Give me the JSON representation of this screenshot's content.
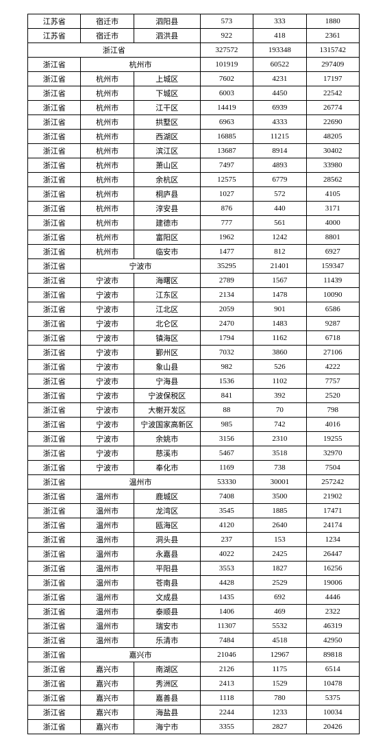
{
  "table": {
    "background_color": "#ffffff",
    "border_color": "#000000",
    "font_family": "SimSun",
    "font_size": 11,
    "text_color": "#000000",
    "column_alignment": [
      "center",
      "center",
      "center",
      "center",
      "center",
      "center"
    ],
    "rows": [
      {
        "cells": [
          "江苏省",
          "宿迁市",
          "泗阳县",
          "573",
          "333",
          "1880"
        ]
      },
      {
        "cells": [
          "江苏省",
          "宿迁市",
          "泗洪县",
          "922",
          "418",
          "2361"
        ]
      },
      {
        "cells": [
          {
            "text": "浙江省",
            "colspan": 3
          },
          "327572",
          "193348",
          "1315742"
        ]
      },
      {
        "cells": [
          "浙江省",
          {
            "text": "杭州市",
            "colspan": 2
          },
          "101919",
          "60522",
          "297409"
        ]
      },
      {
        "cells": [
          "浙江省",
          "杭州市",
          "上城区",
          "7602",
          "4231",
          "17197"
        ]
      },
      {
        "cells": [
          "浙江省",
          "杭州市",
          "下城区",
          "6003",
          "4450",
          "22542"
        ]
      },
      {
        "cells": [
          "浙江省",
          "杭州市",
          "江干区",
          "14419",
          "6939",
          "26774"
        ]
      },
      {
        "cells": [
          "浙江省",
          "杭州市",
          "拱墅区",
          "6963",
          "4333",
          "22690"
        ]
      },
      {
        "cells": [
          "浙江省",
          "杭州市",
          "西湖区",
          "16885",
          "11215",
          "48205"
        ]
      },
      {
        "cells": [
          "浙江省",
          "杭州市",
          "滨江区",
          "13687",
          "8914",
          "30402"
        ]
      },
      {
        "cells": [
          "浙江省",
          "杭州市",
          "萧山区",
          "7497",
          "4893",
          "33980"
        ]
      },
      {
        "cells": [
          "浙江省",
          "杭州市",
          "余杭区",
          "12575",
          "6779",
          "28562"
        ]
      },
      {
        "cells": [
          "浙江省",
          "杭州市",
          "桐庐县",
          "1027",
          "572",
          "4105"
        ]
      },
      {
        "cells": [
          "浙江省",
          "杭州市",
          "淳安县",
          "876",
          "440",
          "3171"
        ]
      },
      {
        "cells": [
          "浙江省",
          "杭州市",
          "建德市",
          "777",
          "561",
          "4000"
        ]
      },
      {
        "cells": [
          "浙江省",
          "杭州市",
          "富阳区",
          "1962",
          "1242",
          "8801"
        ]
      },
      {
        "cells": [
          "浙江省",
          "杭州市",
          "临安市",
          "1477",
          "812",
          "6927"
        ]
      },
      {
        "cells": [
          "浙江省",
          {
            "text": "宁波市",
            "colspan": 2
          },
          "35295",
          "21401",
          "159347"
        ]
      },
      {
        "cells": [
          "浙江省",
          "宁波市",
          "海曙区",
          "2789",
          "1567",
          "11439"
        ]
      },
      {
        "cells": [
          "浙江省",
          "宁波市",
          "江东区",
          "2134",
          "1478",
          "10090"
        ]
      },
      {
        "cells": [
          "浙江省",
          "宁波市",
          "江北区",
          "2059",
          "901",
          "6586"
        ]
      },
      {
        "cells": [
          "浙江省",
          "宁波市",
          "北仑区",
          "2470",
          "1483",
          "9287"
        ]
      },
      {
        "cells": [
          "浙江省",
          "宁波市",
          "镇海区",
          "1794",
          "1162",
          "6718"
        ]
      },
      {
        "cells": [
          "浙江省",
          "宁波市",
          "鄞州区",
          "7032",
          "3860",
          "27106"
        ]
      },
      {
        "cells": [
          "浙江省",
          "宁波市",
          "象山县",
          "982",
          "526",
          "4222"
        ]
      },
      {
        "cells": [
          "浙江省",
          "宁波市",
          "宁海县",
          "1536",
          "1102",
          "7757"
        ]
      },
      {
        "cells": [
          "浙江省",
          "宁波市",
          "宁波保税区",
          "841",
          "392",
          "2520"
        ]
      },
      {
        "cells": [
          "浙江省",
          "宁波市",
          "大榭开发区",
          "88",
          "70",
          "798"
        ]
      },
      {
        "cells": [
          "浙江省",
          "宁波市",
          "宁波国家高新区",
          "985",
          "742",
          "4016"
        ]
      },
      {
        "cells": [
          "浙江省",
          "宁波市",
          "余姚市",
          "3156",
          "2310",
          "19255"
        ]
      },
      {
        "cells": [
          "浙江省",
          "宁波市",
          "慈溪市",
          "5467",
          "3518",
          "32970"
        ]
      },
      {
        "cells": [
          "浙江省",
          "宁波市",
          "奉化市",
          "1169",
          "738",
          "7504"
        ]
      },
      {
        "cells": [
          "浙江省",
          {
            "text": "温州市",
            "colspan": 2
          },
          "53330",
          "30001",
          "257242"
        ]
      },
      {
        "cells": [
          "浙江省",
          "温州市",
          "鹿城区",
          "7408",
          "3500",
          "21902"
        ]
      },
      {
        "cells": [
          "浙江省",
          "温州市",
          "龙湾区",
          "3545",
          "1885",
          "17471"
        ]
      },
      {
        "cells": [
          "浙江省",
          "温州市",
          "瓯海区",
          "4120",
          "2640",
          "24174"
        ]
      },
      {
        "cells": [
          "浙江省",
          "温州市",
          "洞头县",
          "237",
          "153",
          "1234"
        ]
      },
      {
        "cells": [
          "浙江省",
          "温州市",
          "永嘉县",
          "4022",
          "2425",
          "26447"
        ]
      },
      {
        "cells": [
          "浙江省",
          "温州市",
          "平阳县",
          "3553",
          "1827",
          "16256"
        ]
      },
      {
        "cells": [
          "浙江省",
          "温州市",
          "苍南县",
          "4428",
          "2529",
          "19006"
        ]
      },
      {
        "cells": [
          "浙江省",
          "温州市",
          "文成县",
          "1435",
          "692",
          "4446"
        ]
      },
      {
        "cells": [
          "浙江省",
          "温州市",
          "泰顺县",
          "1406",
          "469",
          "2322"
        ]
      },
      {
        "cells": [
          "浙江省",
          "温州市",
          "瑞安市",
          "11307",
          "5532",
          "46319"
        ]
      },
      {
        "cells": [
          "浙江省",
          "温州市",
          "乐清市",
          "7484",
          "4518",
          "42950"
        ]
      },
      {
        "cells": [
          "浙江省",
          {
            "text": "嘉兴市",
            "colspan": 2
          },
          "21046",
          "12967",
          "89818"
        ]
      },
      {
        "cells": [
          "浙江省",
          "嘉兴市",
          "南湖区",
          "2126",
          "1175",
          "6514"
        ]
      },
      {
        "cells": [
          "浙江省",
          "嘉兴市",
          "秀洲区",
          "2413",
          "1529",
          "10478"
        ]
      },
      {
        "cells": [
          "浙江省",
          "嘉兴市",
          "嘉善县",
          "1118",
          "780",
          "5375"
        ]
      },
      {
        "cells": [
          "浙江省",
          "嘉兴市",
          "海盐县",
          "2244",
          "1233",
          "10034"
        ]
      },
      {
        "cells": [
          "浙江省",
          "嘉兴市",
          "海宁市",
          "3355",
          "2827",
          "20426"
        ]
      }
    ]
  }
}
